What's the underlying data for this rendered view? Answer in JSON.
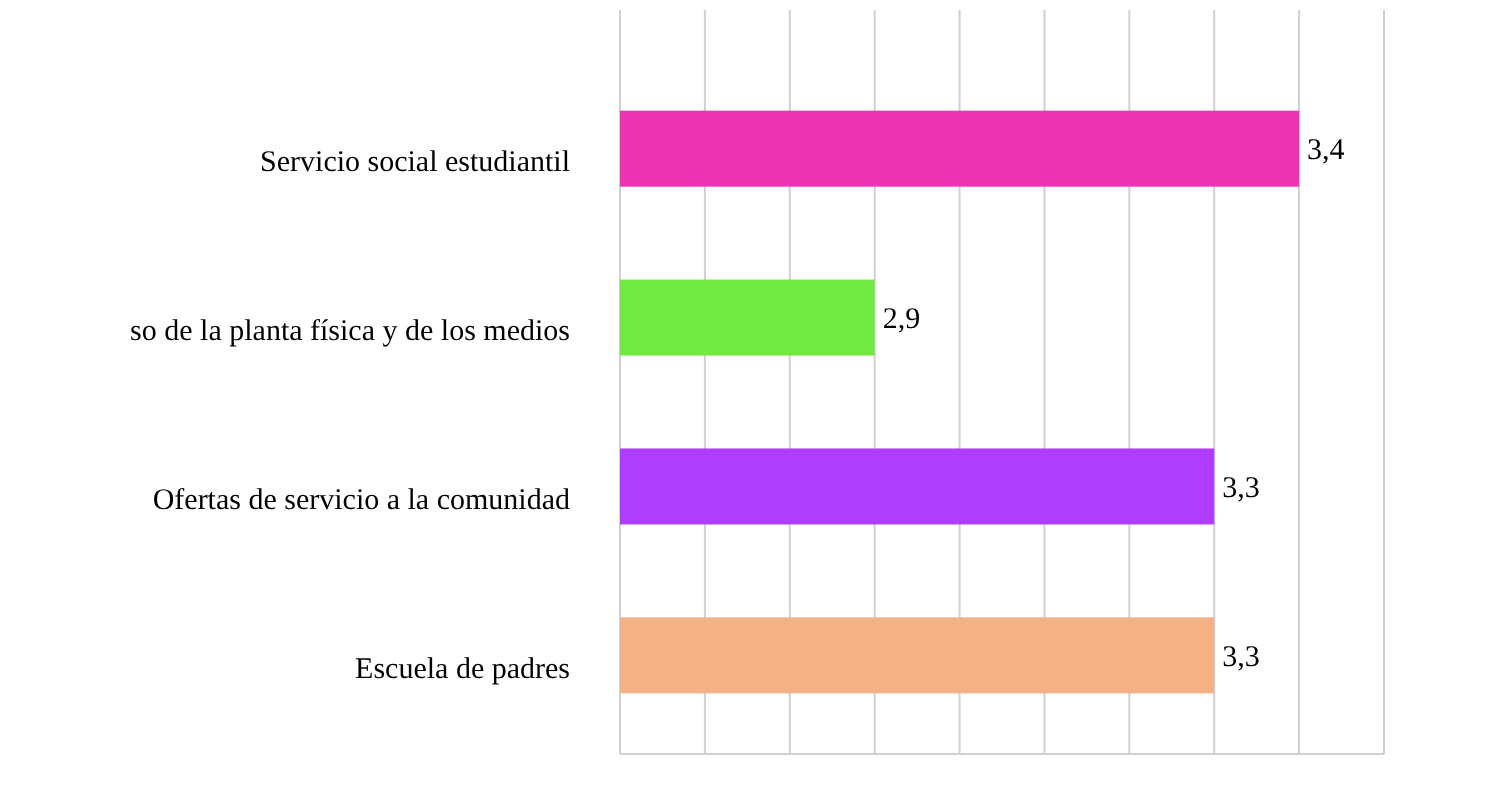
{
  "chart_data": {
    "type": "bar",
    "orientation": "horizontal",
    "categories": [
      "Servicio social estudiantil",
      "so de la planta física y de los medios",
      "Ofertas de servicio a la comunidad",
      "Escuela de padres"
    ],
    "values": [
      3.4,
      2.9,
      3.3,
      3.3
    ],
    "value_labels": [
      "3,4",
      "2,9",
      "3,3",
      "3,3"
    ],
    "colors": [
      "#ee33b0",
      "#70ea40",
      "#b03cff",
      "#f4b186"
    ],
    "xlim": [
      2.6,
      3.5
    ],
    "xticks": [
      {
        "value": 2.6,
        "label": null
      },
      {
        "value": 2.7,
        "label": null
      },
      {
        "value": 2.8,
        "label": null
      },
      {
        "value": 2.9,
        "label": null
      },
      {
        "value": 3.0,
        "label": null
      },
      {
        "value": 3.1,
        "label": null
      },
      {
        "value": 3.2,
        "label": null
      },
      {
        "value": 3.3,
        "label": null
      },
      {
        "value": 3.4,
        "label": null
      },
      {
        "value": 3.5,
        "label": null
      }
    ],
    "grid": "x",
    "tick_labels": "y"
  }
}
